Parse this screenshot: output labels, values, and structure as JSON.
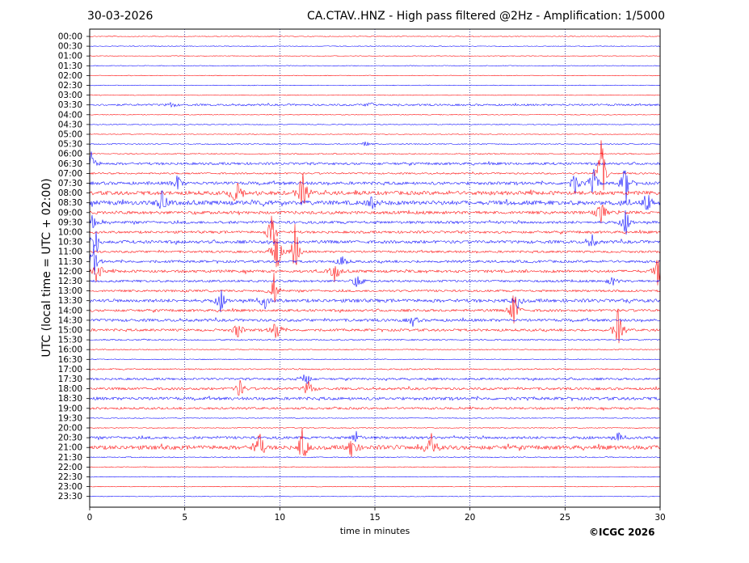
{
  "header": {
    "date": "30-03-2026",
    "title": "CA.CTAV..HNZ - High pass filtered @2Hz - Amplification: 1/5000"
  },
  "footer": {
    "copyright": "©ICGC 2026"
  },
  "chart_data": {
    "type": "line",
    "title": "CA.CTAV..HNZ - High pass filtered @2Hz - Amplification: 1/5000",
    "xlabel": "time in minutes",
    "ylabel": "UTC (local time = UTC + 02:00)",
    "xlim": [
      0,
      30
    ],
    "x_ticks": [
      0,
      5,
      10,
      15,
      20,
      25,
      30
    ],
    "y_ticks": [
      "00:00",
      "00:30",
      "01:00",
      "01:30",
      "02:00",
      "02:30",
      "03:00",
      "03:30",
      "04:00",
      "04:30",
      "05:00",
      "05:30",
      "06:00",
      "06:30",
      "07:00",
      "07:30",
      "08:00",
      "08:30",
      "09:00",
      "09:30",
      "10:00",
      "10:30",
      "11:00",
      "11:30",
      "12:00",
      "12:30",
      "13:00",
      "13:30",
      "14:00",
      "14:30",
      "15:00",
      "15:30",
      "16:00",
      "16:30",
      "17:00",
      "17:30",
      "18:00",
      "18:30",
      "19:00",
      "19:30",
      "20:00",
      "20:30",
      "21:00",
      "21:30",
      "22:00",
      "22:30",
      "23:00",
      "23:30"
    ],
    "grid": {
      "vertical_dotted": true
    },
    "series_colors": [
      "#ff0000",
      "#0000ff"
    ],
    "trace_activity": [
      0.02,
      0.02,
      0.02,
      0.03,
      0.02,
      0.02,
      0.03,
      0.25,
      0.03,
      0.05,
      0.03,
      0.08,
      0.1,
      0.35,
      0.2,
      0.45,
      0.6,
      0.7,
      0.45,
      0.4,
      0.35,
      0.45,
      0.3,
      0.35,
      0.4,
      0.3,
      0.3,
      0.5,
      0.35,
      0.4,
      0.35,
      0.15,
      0.08,
      0.05,
      0.15,
      0.3,
      0.35,
      0.45,
      0.3,
      0.03,
      0.05,
      0.4,
      0.65,
      0.08,
      0.06,
      0.03,
      0.02,
      0.02
    ],
    "events": [
      {
        "row": "03:30",
        "x": 4.3,
        "amp": 0.3
      },
      {
        "row": "03:30",
        "x": 14.8,
        "amp": 0.4
      },
      {
        "row": "05:30",
        "x": 14.5,
        "amp": 0.3
      },
      {
        "row": "06:30",
        "x": 0.1,
        "amp": 1.4
      },
      {
        "row": "07:00",
        "x": 26.9,
        "amp": 4.5
      },
      {
        "row": "07:30",
        "x": 4.6,
        "amp": 1.0
      },
      {
        "row": "07:30",
        "x": 25.5,
        "amp": 1.3
      },
      {
        "row": "07:30",
        "x": 26.5,
        "amp": 2.0
      },
      {
        "row": "07:30",
        "x": 28.2,
        "amp": 2.5
      },
      {
        "row": "08:00",
        "x": 7.7,
        "amp": 1.6
      },
      {
        "row": "08:00",
        "x": 11.2,
        "amp": 2.6
      },
      {
        "row": "08:30",
        "x": 3.8,
        "amp": 1.2
      },
      {
        "row": "08:30",
        "x": 14.9,
        "amp": 0.8
      },
      {
        "row": "08:30",
        "x": 29.3,
        "amp": 1.2
      },
      {
        "row": "09:00",
        "x": 26.9,
        "amp": 1.5
      },
      {
        "row": "09:30",
        "x": 0.1,
        "amp": 1.2
      },
      {
        "row": "09:30",
        "x": 28.2,
        "amp": 1.4
      },
      {
        "row": "10:00",
        "x": 9.6,
        "amp": 2.5
      },
      {
        "row": "10:30",
        "x": 0.3,
        "amp": 1.8
      },
      {
        "row": "10:30",
        "x": 26.4,
        "amp": 0.8
      },
      {
        "row": "11:00",
        "x": 9.8,
        "amp": 3.5
      },
      {
        "row": "11:00",
        "x": 10.8,
        "amp": 3.2
      },
      {
        "row": "11:30",
        "x": 0.2,
        "amp": 1.8
      },
      {
        "row": "11:30",
        "x": 13.3,
        "amp": 0.8
      },
      {
        "row": "12:00",
        "x": 0.4,
        "amp": 1.5
      },
      {
        "row": "12:00",
        "x": 12.9,
        "amp": 1.3
      },
      {
        "row": "12:00",
        "x": 29.9,
        "amp": 1.8
      },
      {
        "row": "12:30",
        "x": 14.1,
        "amp": 1.0
      },
      {
        "row": "12:30",
        "x": 27.5,
        "amp": 0.8
      },
      {
        "row": "13:00",
        "x": 9.7,
        "amp": 2.0
      },
      {
        "row": "13:30",
        "x": 6.9,
        "amp": 1.2
      },
      {
        "row": "13:30",
        "x": 9.2,
        "amp": 0.9
      },
      {
        "row": "13:30",
        "x": 22.5,
        "amp": 0.8
      },
      {
        "row": "14:00",
        "x": 22.3,
        "amp": 2.4
      },
      {
        "row": "14:30",
        "x": 17.0,
        "amp": 0.6
      },
      {
        "row": "15:00",
        "x": 7.8,
        "amp": 1.0
      },
      {
        "row": "15:00",
        "x": 9.8,
        "amp": 1.6
      },
      {
        "row": "15:00",
        "x": 27.8,
        "amp": 2.5
      },
      {
        "row": "17:30",
        "x": 11.3,
        "amp": 1.3
      },
      {
        "row": "18:00",
        "x": 7.9,
        "amp": 1.0
      },
      {
        "row": "18:00",
        "x": 11.5,
        "amp": 1.1
      },
      {
        "row": "20:30",
        "x": 14.0,
        "amp": 0.7
      },
      {
        "row": "20:30",
        "x": 27.8,
        "amp": 0.5
      },
      {
        "row": "21:00",
        "x": 8.9,
        "amp": 2.2
      },
      {
        "row": "21:00",
        "x": 11.2,
        "amp": 2.2
      },
      {
        "row": "21:00",
        "x": 13.8,
        "amp": 1.5
      },
      {
        "row": "21:00",
        "x": 18.0,
        "amp": 1.6
      }
    ]
  }
}
